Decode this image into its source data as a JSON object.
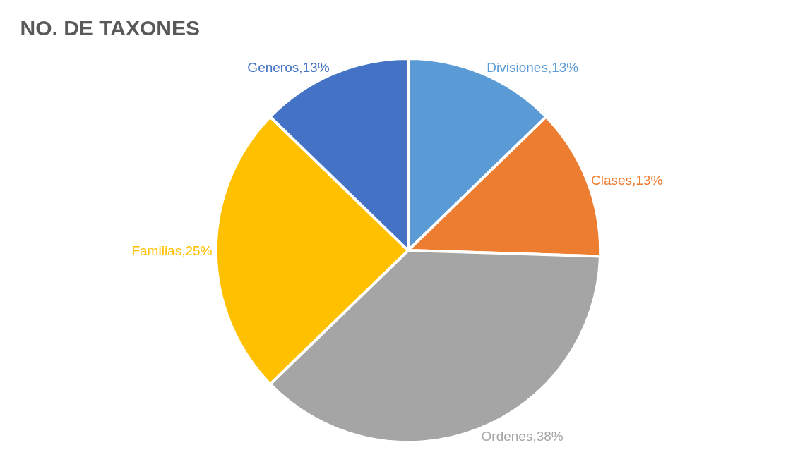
{
  "chart_data": {
    "type": "pie",
    "title": "NO. DE TAXONES",
    "categories": [
      "Divisiones",
      "Clases",
      "Ordenes",
      "Familias",
      "Generos"
    ],
    "values": [
      13,
      13,
      38,
      25,
      13
    ],
    "value_labels": [
      "13%",
      "13%",
      "38%",
      "25%",
      "13%"
    ],
    "colors": [
      "#5b9bd5",
      "#ed7d31",
      "#a5a5a5",
      "#ffc000",
      "#4472c4"
    ]
  }
}
